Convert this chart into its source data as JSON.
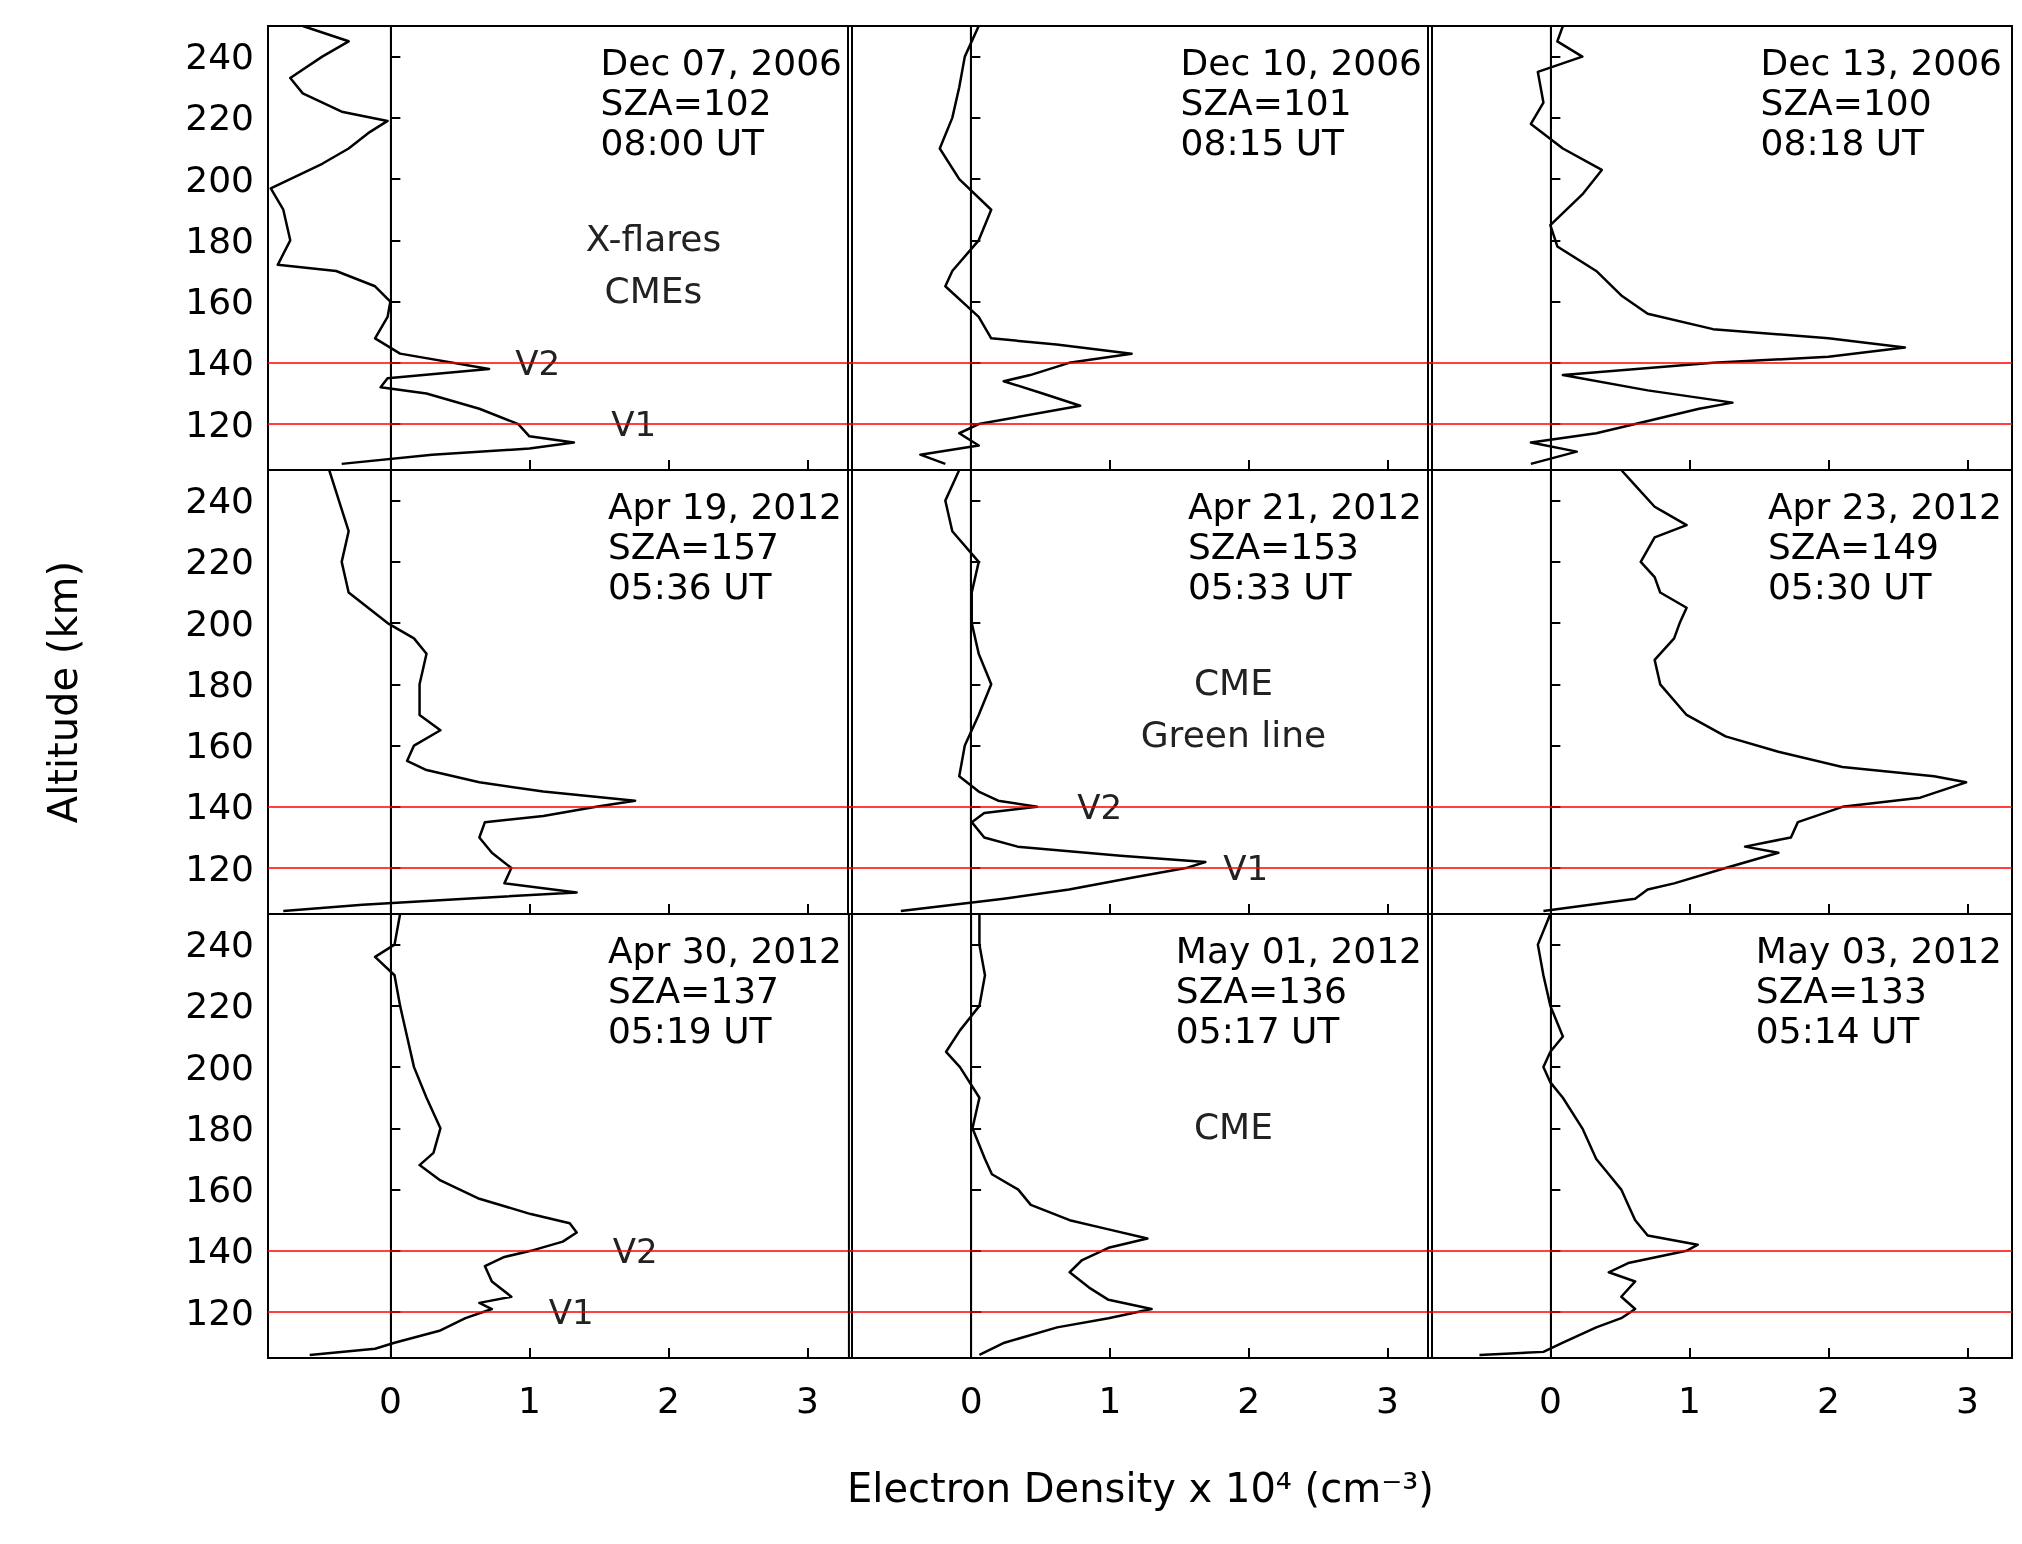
{
  "chart_data": [
    {
      "type": "line",
      "xlim": [
        -0.88,
        3.32
      ],
      "ylim": [
        105,
        250
      ],
      "xticks": [
        0,
        1,
        2,
        3
      ],
      "yticks": [
        120,
        140,
        160,
        180,
        200,
        220,
        240
      ],
      "tick_labels": "y",
      "annotations": [
        "Dec 07, 2006\nSZA=102\n08:00 UT",
        "X-flares\nCMEs",
        {
          "text": "V2",
          "x": 1.06,
          "y": 140
        },
        {
          "text": "V1",
          "x": 1.75,
          "y": 120
        }
      ],
      "ref_lines": [
        {
          "axis": "x",
          "value": 0,
          "color": "#000000"
        },
        {
          "axis": "y",
          "value": 120,
          "color": "#ff0000"
        },
        {
          "axis": "y",
          "value": 140,
          "color": "#ff0000"
        }
      ],
      "series": [
        {
          "color": "#000000",
          "x": [
            -0.35,
            0.3,
            1.0,
            1.32,
            1.0,
            0.92,
            0.64,
            0.26,
            -0.07,
            -0.02,
            0.71,
            0.07,
            -0.11,
            -0.02,
            0,
            -0.11,
            -0.39,
            -0.81,
            -0.72,
            -0.77,
            -0.86,
            -0.49,
            -0.3,
            -0.16,
            -0.02,
            -0.35,
            -0.63,
            -0.72,
            -0.49,
            -0.3,
            -0.63
          ],
          "values": [
            107,
            110,
            112,
            114,
            116,
            120,
            125,
            130,
            132,
            135,
            138,
            143,
            148,
            155,
            160,
            165,
            170,
            172,
            180,
            190,
            197,
            205,
            210,
            215,
            219,
            222,
            228,
            233,
            240,
            245,
            250
          ]
        }
      ]
    },
    {
      "type": "line",
      "xlim": [
        -0.88,
        3.32
      ],
      "ylim": [
        105,
        250
      ],
      "xticks": [
        0,
        1,
        2,
        3
      ],
      "yticks": [
        120,
        140,
        160,
        180,
        200,
        220,
        240
      ],
      "tick_labels": false,
      "annotations": [
        "Dec 10, 2006\nSZA=101\n08:15 UT"
      ],
      "ref_lines": [
        {
          "axis": "x",
          "value": 0,
          "color": "#000000"
        },
        {
          "axis": "y",
          "value": 120,
          "color": "#ff0000"
        },
        {
          "axis": "y",
          "value": 140,
          "color": "#ff0000"
        }
      ],
      "series": [
        {
          "color": "#000000",
          "x": [
            -0.18,
            -0.36,
            0.06,
            -0.08,
            0.06,
            0.79,
            0.52,
            0.24,
            0.43,
            0.71,
            1.16,
            0.62,
            0.15,
            0.06,
            -0.18,
            -0.13,
            0.06,
            0.15,
            -0.08,
            -0.22,
            -0.13,
            -0.08,
            -0.04,
            0.06
          ],
          "values": [
            107,
            110,
            113,
            117,
            120,
            126,
            130,
            134,
            136,
            140,
            143,
            146,
            148,
            155,
            165,
            170,
            180,
            190,
            200,
            210,
            220,
            230,
            240,
            250
          ]
        }
      ]
    },
    {
      "type": "line",
      "xlim": [
        -0.88,
        3.32
      ],
      "ylim": [
        105,
        250
      ],
      "xticks": [
        0,
        1,
        2,
        3
      ],
      "yticks": [
        120,
        140,
        160,
        180,
        200,
        220,
        240
      ],
      "tick_labels": false,
      "annotations": [
        "Dec 13, 2006\nSZA=100\n08:18 UT"
      ],
      "ref_lines": [
        {
          "axis": "x",
          "value": 0,
          "color": "#000000"
        },
        {
          "axis": "y",
          "value": 120,
          "color": "#ff0000"
        },
        {
          "axis": "y",
          "value": 140,
          "color": "#ff0000"
        }
      ],
      "series": [
        {
          "color": "#000000",
          "x": [
            -0.14,
            0.19,
            -0.14,
            0.33,
            0.61,
            1.07,
            1.31,
            0.7,
            0.09,
            1.17,
            2.0,
            2.55,
            2.0,
            1.17,
            0.7,
            0.51,
            0.33,
            0.05,
            0,
            0.23,
            0.37,
            0.09,
            -0.14,
            -0.05,
            -0.09,
            0.23,
            0.05,
            0.09
          ],
          "values": [
            107,
            111,
            114,
            117,
            120,
            125,
            127,
            131,
            136,
            140,
            142,
            145,
            148,
            151,
            156,
            162,
            170,
            178,
            185,
            195,
            203,
            210,
            218,
            225,
            235,
            240,
            245,
            250
          ]
        }
      ]
    },
    {
      "type": "line",
      "xlim": [
        -0.88,
        3.32
      ],
      "ylim": [
        105,
        250
      ],
      "xticks": [
        0,
        1,
        2,
        3
      ],
      "yticks": [
        120,
        140,
        160,
        180,
        200,
        220,
        240
      ],
      "tick_labels": "y",
      "ylabel": "Altitude (km)",
      "annotations": [
        "Apr 19, 2012\nSZA=157\n05:36 UT"
      ],
      "ref_lines": [
        {
          "axis": "x",
          "value": 0,
          "color": "#000000"
        },
        {
          "axis": "y",
          "value": 120,
          "color": "#ff0000"
        },
        {
          "axis": "y",
          "value": 140,
          "color": "#ff0000"
        }
      ],
      "series": [
        {
          "color": "#000000",
          "x": [
            -0.77,
            -0.2,
            0.54,
            1.34,
            0.82,
            0.87,
            0.73,
            0.64,
            0.68,
            1.1,
            1.48,
            1.76,
            1.1,
            0.64,
            0.26,
            0.12,
            0.17,
            0.36,
            0.21,
            0.21,
            0.26,
            0.17,
            -0.02,
            -0.16,
            -0.3,
            -0.35,
            -0.3,
            -0.37,
            -0.44
          ],
          "values": [
            106,
            108,
            110,
            112,
            115,
            120,
            125,
            130,
            135,
            137,
            140,
            142,
            145,
            148,
            152,
            155,
            160,
            165,
            170,
            180,
            190,
            195,
            200,
            205,
            210,
            220,
            230,
            240,
            250
          ]
        }
      ]
    },
    {
      "type": "line",
      "xlim": [
        -0.88,
        3.32
      ],
      "ylim": [
        105,
        250
      ],
      "xticks": [
        0,
        1,
        2,
        3
      ],
      "yticks": [
        120,
        140,
        160,
        180,
        200,
        220,
        240
      ],
      "tick_labels": false,
      "annotations": [
        "Apr 21, 2012\nSZA=153\n05:33 UT",
        "CME",
        "Green line",
        {
          "text": "V2",
          "x": 0.93,
          "y": 140
        },
        {
          "text": "V1",
          "x": 1.98,
          "y": 120
        }
      ],
      "ref_lines": [
        {
          "axis": "x",
          "value": 0,
          "color": "#000000"
        },
        {
          "axis": "y",
          "value": 120,
          "color": "#ff0000"
        },
        {
          "axis": "y",
          "value": 140,
          "color": "#ff0000"
        }
      ],
      "series": [
        {
          "color": "#000000",
          "x": [
            -0.5,
            0.24,
            0.71,
            1.18,
            1.55,
            1.69,
            1.08,
            0.34,
            0.1,
            0.01,
            0.1,
            0.48,
            0.2,
            0.06,
            -0.08,
            -0.04,
            0.06,
            0.15,
            0.06,
            0.01,
            0.01,
            0.06,
            -0.13,
            -0.18,
            -0.08
          ],
          "values": [
            106,
            110,
            113,
            117,
            120,
            122,
            124,
            127,
            130,
            135,
            138,
            140,
            142,
            145,
            150,
            160,
            170,
            180,
            190,
            200,
            210,
            220,
            230,
            240,
            250
          ]
        }
      ]
    },
    {
      "type": "line",
      "xlim": [
        -0.88,
        3.32
      ],
      "ylim": [
        105,
        250
      ],
      "xticks": [
        0,
        1,
        2,
        3
      ],
      "yticks": [
        120,
        140,
        160,
        180,
        200,
        220,
        240
      ],
      "tick_labels": false,
      "annotations": [
        "Apr 23, 2012\nSZA=149\n05:30 UT"
      ],
      "ref_lines": [
        {
          "axis": "x",
          "value": 0,
          "color": "#000000"
        },
        {
          "axis": "y",
          "value": 120,
          "color": "#ff0000"
        },
        {
          "axis": "y",
          "value": 140,
          "color": "#ff0000"
        }
      ],
      "series": [
        {
          "color": "#000000",
          "x": [
            -0.05,
            0.61,
            0.7,
            0.89,
            1.26,
            1.64,
            1.4,
            1.73,
            1.78,
            2.1,
            2.66,
            2.99,
            2.76,
            2.1,
            1.64,
            1.26,
            0.98,
            0.79,
            0.75,
            0.89,
            0.93,
            0.98,
            0.79,
            0.75,
            0.65,
            0.75,
            0.98,
            0.75,
            0.61,
            0.51
          ],
          "values": [
            106,
            110,
            113,
            115,
            120,
            125,
            127,
            130,
            135,
            140,
            143,
            148,
            150,
            153,
            158,
            163,
            170,
            180,
            188,
            195,
            200,
            205,
            210,
            215,
            220,
            228,
            232,
            238,
            245,
            250
          ]
        }
      ]
    },
    {
      "type": "line",
      "xlim": [
        -0.88,
        3.32
      ],
      "ylim": [
        105,
        250
      ],
      "xticks": [
        0,
        1,
        2,
        3
      ],
      "yticks": [
        120,
        140,
        160,
        180,
        200,
        220,
        240
      ],
      "annotations": [
        "Apr 30, 2012\nSZA=137\n05:19 UT",
        {
          "text": "V2",
          "x": 1.76,
          "y": 140
        },
        {
          "text": "V1",
          "x": 1.3,
          "y": 120
        }
      ],
      "ref_lines": [
        {
          "axis": "x",
          "value": 0,
          "color": "#000000"
        },
        {
          "axis": "y",
          "value": 120,
          "color": "#ff0000"
        },
        {
          "axis": "y",
          "value": 140,
          "color": "#ff0000"
        }
      ],
      "series": [
        {
          "color": "#000000",
          "x": [
            -0.58,
            -0.11,
            0.03,
            0.36,
            0.54,
            0.73,
            0.64,
            0.87,
            0.73,
            0.68,
            0.82,
            1.01,
            1.24,
            1.34,
            1.29,
            1.01,
            0.64,
            0.36,
            0.21,
            0.31,
            0.36,
            0.26,
            0.17,
            0.12,
            0.07,
            0.03,
            -0.11,
            0.03,
            0.07
          ],
          "values": [
            106,
            108,
            110,
            114,
            118,
            121,
            123,
            125,
            130,
            135,
            138,
            140,
            143,
            146,
            149,
            152,
            157,
            163,
            168,
            172,
            180,
            190,
            200,
            210,
            220,
            230,
            236,
            240,
            250
          ]
        }
      ]
    },
    {
      "type": "line",
      "xlim": [
        -0.88,
        3.32
      ],
      "ylim": [
        105,
        250
      ],
      "xticks": [
        0,
        1,
        2,
        3
      ],
      "yticks": [
        120,
        140,
        160,
        180,
        200,
        220,
        240
      ],
      "tick_labels": "x",
      "xlabel": "Electron Density x 10⁴ (cm⁻³)",
      "annotations": [
        "May 01, 2012\nSZA=136\n05:17 UT",
        "CME"
      ],
      "ref_lines": [
        {
          "axis": "x",
          "value": 0,
          "color": "#000000"
        },
        {
          "axis": "y",
          "value": 120,
          "color": "#ff0000"
        },
        {
          "axis": "y",
          "value": 140,
          "color": "#ff0000"
        }
      ],
      "series": [
        {
          "color": "#000000",
          "x": [
            0.06,
            0.24,
            0.62,
            0.99,
            1.3,
            0.99,
            0.85,
            0.71,
            0.8,
            0.99,
            1.27,
            0.99,
            0.71,
            0.43,
            0.34,
            0.15,
            0.1,
            0.01,
            0.06,
            -0.08,
            -0.18,
            -0.08,
            0.06,
            0.1,
            0.06,
            0.06
          ],
          "values": [
            106,
            110,
            115,
            118,
            121,
            124,
            128,
            133,
            137,
            141,
            144,
            147,
            150,
            155,
            160,
            165,
            170,
            180,
            190,
            200,
            205,
            212,
            220,
            230,
            240,
            250
          ]
        }
      ]
    },
    {
      "type": "line",
      "xlim": [
        -0.88,
        3.32
      ],
      "ylim": [
        105,
        250
      ],
      "xticks": [
        0,
        1,
        2,
        3
      ],
      "yticks": [
        120,
        140,
        160,
        180,
        200,
        220,
        240
      ],
      "tick_labels": "x",
      "annotations": [
        "May 03, 2012\nSZA=133\n05:14 UT"
      ],
      "ref_lines": [
        {
          "axis": "x",
          "value": 0,
          "color": "#000000"
        },
        {
          "axis": "y",
          "value": 120,
          "color": "#ff0000"
        },
        {
          "axis": "y",
          "value": 140,
          "color": "#ff0000"
        }
      ],
      "series": [
        {
          "color": "#000000",
          "x": [
            -0.51,
            -0.05,
            0.09,
            0.33,
            0.51,
            0.61,
            0.51,
            0.61,
            0.42,
            0.56,
            0.98,
            1.06,
            0.7,
            0.61,
            0.56,
            0.51,
            0.42,
            0.33,
            0.23,
            0.09,
            0,
            -0.05,
            0,
            0.09,
            0,
            -0.05,
            -0.09,
            0
          ],
          "values": [
            106,
            107,
            110,
            115,
            118,
            121,
            125,
            130,
            133,
            136,
            140,
            142,
            145,
            150,
            155,
            160,
            165,
            170,
            180,
            190,
            195,
            200,
            205,
            210,
            220,
            230,
            240,
            250
          ]
        }
      ]
    }
  ]
}
